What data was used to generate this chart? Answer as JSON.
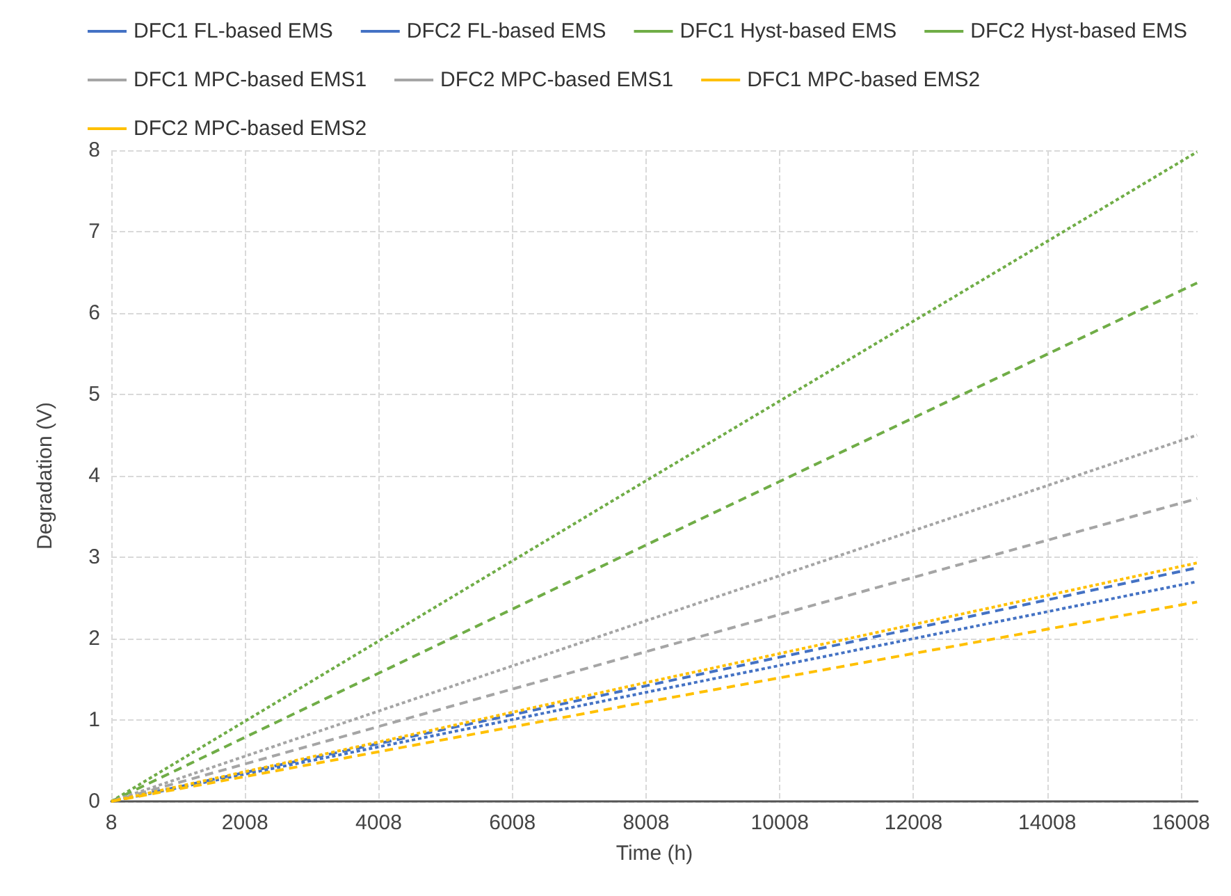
{
  "chart_data": {
    "type": "line",
    "xlabel": "Time (h)",
    "ylabel": "Degradation (V)",
    "xlim": [
      8,
      16258
    ],
    "xticks": [
      8,
      2008,
      4008,
      6008,
      8008,
      10008,
      12008,
      14008,
      16008
    ],
    "ylim": [
      0,
      8
    ],
    "yticks": [
      0,
      1,
      2,
      3,
      4,
      5,
      6,
      7,
      8
    ],
    "grid": true,
    "legend": "top",
    "marker": "none",
    "x": [
      8,
      8008,
      16250
    ],
    "series": [
      {
        "name": "DFC1 FL-based EMS",
        "color": "#4472c4",
        "line_style": "dashed",
        "values": [
          0,
          1.42,
          2.87
        ]
      },
      {
        "name": "DFC2 FL-based EMS",
        "color": "#4472c4",
        "line_style": "dotted",
        "values": [
          0,
          1.34,
          2.7
        ]
      },
      {
        "name": "DFC1 Hyst-based EMS",
        "color": "#70ad47",
        "line_style": "dashed",
        "values": [
          0,
          3.15,
          6.37
        ]
      },
      {
        "name": "DFC2 Hyst-based EMS",
        "color": "#70ad47",
        "line_style": "dotted",
        "values": [
          0,
          3.94,
          7.98
        ]
      },
      {
        "name": "DFC1 MPC-based EMS1",
        "color": "#a5a5a5",
        "line_style": "dashed",
        "values": [
          0,
          1.84,
          3.72
        ]
      },
      {
        "name": "DFC2 MPC-based EMS1",
        "color": "#a5a5a5",
        "line_style": "dotted",
        "values": [
          0,
          2.22,
          4.5
        ]
      },
      {
        "name": "DFC1 MPC-based EMS2",
        "color": "#ffc000",
        "line_style": "dashed",
        "values": [
          0,
          1.22,
          2.45
        ]
      },
      {
        "name": "DFC2 MPC-based EMS2",
        "color": "#ffc000",
        "line_style": "dotted",
        "values": [
          0,
          1.46,
          2.93
        ]
      }
    ]
  }
}
